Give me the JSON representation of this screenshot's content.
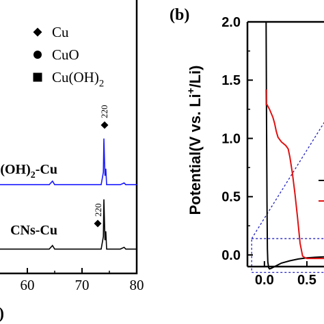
{
  "chart_data": [
    {
      "panel": "(a)",
      "type": "line",
      "xlabel": "",
      "ylabel": "",
      "xlim": [
        55,
        80
      ],
      "x_ticks": [
        60,
        70,
        80
      ],
      "legend": {
        "placement": "top-right",
        "items": [
          {
            "marker": "diamond",
            "label": "Cu"
          },
          {
            "marker": "circle",
            "label": "CuO"
          },
          {
            "marker": "square",
            "label": "Cu(OH)",
            "sub": "2"
          }
        ]
      },
      "series": [
        {
          "name": "u(OH)",
          "name_sub": "2",
          "name_suffix": "-Cu",
          "color": "#1a1aff",
          "x": [
            55,
            60,
            62,
            64,
            64.6,
            65,
            66,
            68,
            70,
            72,
            73.5,
            73.9,
            74.0,
            74.1,
            74.2,
            74.35,
            74.5,
            75,
            76,
            77,
            77.7,
            78,
            80
          ],
          "y": [
            6,
            6,
            6,
            6,
            10,
            6,
            6,
            6,
            6,
            6,
            6,
            20,
            58,
            36,
            16,
            24,
            6,
            6,
            6,
            6,
            8,
            6,
            6
          ]
        },
        {
          "name": "CNs-Cu",
          "color": "#000000",
          "x": [
            55,
            60,
            62,
            64,
            64.6,
            65,
            66,
            68,
            70,
            72,
            73.5,
            73.9,
            74.0,
            74.1,
            74.2,
            74.35,
            74.5,
            75,
            76,
            77,
            77.7,
            78,
            80
          ],
          "y": [
            2,
            2,
            2,
            2,
            6,
            2,
            2,
            2,
            2,
            2,
            2,
            16,
            58,
            34,
            12,
            22,
            2,
            2,
            2,
            2,
            4,
            2,
            2
          ]
        }
      ],
      "annotations": [
        {
          "marker": "diamond",
          "label": "220",
          "x": 74.0,
          "series": 0
        },
        {
          "marker": "diamond",
          "label": "220",
          "x": 73.0,
          "series": 1
        }
      ]
    },
    {
      "panel": "(b)",
      "type": "line",
      "xlabel": "",
      "ylabel": "Potential(V vs. Li",
      "ylabel_sup": "+",
      "ylabel_suffix": "/Li)",
      "xlim": [
        -0.2,
        0.75
      ],
      "ylim": [
        -0.1,
        2.0
      ],
      "x_ticks": [
        "0.0",
        "0.5"
      ],
      "y_ticks": [
        "0.0",
        "0.5",
        "1.0",
        "1.5",
        "2.0"
      ],
      "series": [
        {
          "color": "#000000",
          "x": [
            0.02,
            0.025,
            0.03,
            0.035,
            0.04,
            0.05,
            0.06,
            0.08,
            0.12,
            0.2,
            0.3,
            0.4,
            0.5,
            0.6,
            0.75
          ],
          "y": [
            2.0,
            1.2,
            0.45,
            0.05,
            -0.06,
            -0.11,
            -0.12,
            -0.115,
            -0.1,
            -0.07,
            -0.05,
            -0.035,
            -0.025,
            -0.02,
            -0.015
          ]
        },
        {
          "color": "#e01010",
          "x": [
            0.02,
            0.021,
            0.03,
            0.06,
            0.1,
            0.12,
            0.14,
            0.16,
            0.2,
            0.25,
            0.28,
            0.3,
            0.33,
            0.36,
            0.39,
            0.42,
            0.45,
            0.47,
            0.5,
            0.6,
            0.75
          ],
          "y": [
            1.42,
            1.29,
            1.29,
            1.25,
            1.18,
            1.13,
            1.06,
            1.01,
            0.97,
            0.94,
            0.91,
            0.84,
            0.7,
            0.52,
            0.32,
            0.1,
            -0.01,
            -0.02,
            -0.03,
            -0.03,
            -0.03
          ]
        }
      ],
      "inset_box": {
        "x": [
          -0.15,
          0.75
        ],
        "y": [
          -0.15,
          0.14
        ]
      }
    }
  ]
}
